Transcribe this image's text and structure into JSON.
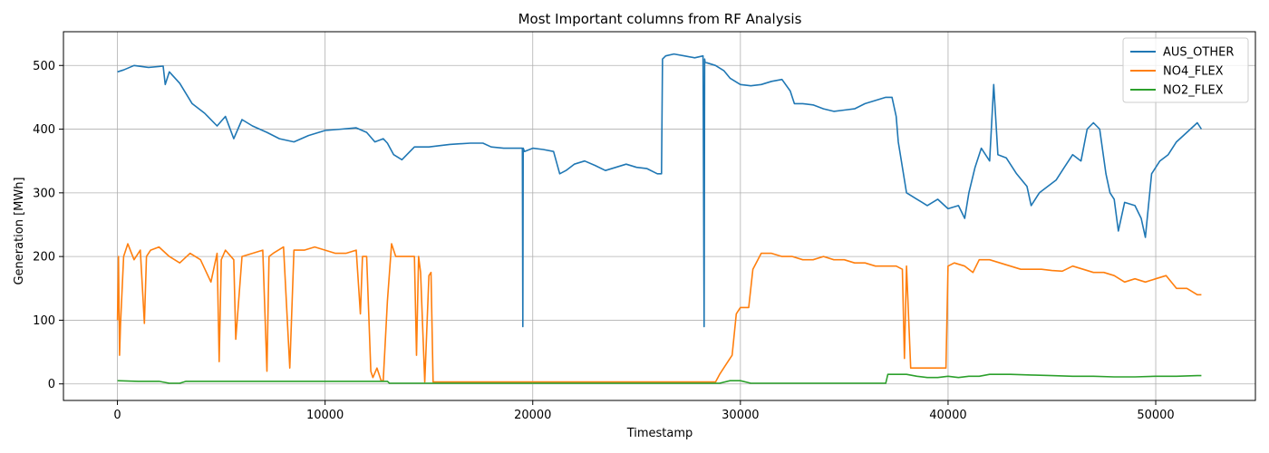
{
  "chart_data": {
    "type": "line",
    "title": "Most Important columns from RF Analysis",
    "xlabel": "Timestamp",
    "ylabel": "Generation [MWh]",
    "xlim": [
      -2600,
      54800
    ],
    "ylim": [
      -26,
      553
    ],
    "x_ticks": [
      0,
      10000,
      20000,
      30000,
      40000,
      50000
    ],
    "x_tick_labels": [
      "0",
      "10000",
      "20000",
      "30000",
      "40000",
      "50000"
    ],
    "y_ticks": [
      0,
      100,
      200,
      300,
      400,
      500
    ],
    "y_tick_labels": [
      "0",
      "100",
      "200",
      "300",
      "400",
      "500"
    ],
    "grid": true,
    "legend_position": "top-right",
    "series": [
      {
        "name": "AUS_OTHER",
        "color": "#1f77b4",
        "x": [
          0,
          300,
          800,
          1500,
          2200,
          2300,
          2500,
          3000,
          3600,
          4200,
          4800,
          5200,
          5600,
          6000,
          6500,
          7200,
          7800,
          8500,
          9200,
          10000,
          10800,
          11500,
          12000,
          12400,
          12800,
          13000,
          13300,
          13700,
          14300,
          15000,
          16000,
          17000,
          17600,
          18000,
          18600,
          19200,
          19500,
          19520,
          19540,
          19600,
          20000,
          20500,
          21000,
          21300,
          21600,
          22000,
          22500,
          23000,
          23500,
          24000,
          24500,
          25000,
          25500,
          26000,
          26200,
          26250,
          26400,
          26800,
          27300,
          27800,
          28200,
          28250,
          28280,
          28300,
          28800,
          29200,
          29500,
          30000,
          30500,
          31000,
          31500,
          32000,
          32400,
          32600,
          33000,
          33500,
          34000,
          34500,
          35000,
          35500,
          36000,
          36500,
          37000,
          37300,
          37500,
          37600,
          38000,
          38500,
          39000,
          39500,
          40000,
          40500,
          40800,
          41000,
          41300,
          41600,
          42000,
          42200,
          42400,
          42800,
          43300,
          43800,
          44000,
          44400,
          44800,
          45200,
          45600,
          46000,
          46400,
          46700,
          47000,
          47300,
          47600,
          47800,
          48000,
          48200,
          48500,
          49000,
          49300,
          49500,
          49800,
          50200,
          50600,
          51000,
          51500,
          52000,
          52200
        ],
        "values": [
          490,
          493,
          500,
          497,
          499,
          470,
          490,
          472,
          440,
          425,
          405,
          420,
          385,
          415,
          405,
          395,
          385,
          380,
          390,
          398,
          400,
          402,
          395,
          380,
          385,
          378,
          360,
          352,
          372,
          372,
          376,
          378,
          378,
          372,
          370,
          370,
          370,
          90,
          370,
          365,
          370,
          368,
          365,
          330,
          335,
          345,
          350,
          343,
          335,
          340,
          345,
          340,
          338,
          330,
          330,
          510,
          515,
          518,
          515,
          512,
          515,
          90,
          510,
          505,
          500,
          492,
          480,
          470,
          468,
          470,
          475,
          478,
          460,
          440,
          440,
          438,
          432,
          428,
          430,
          432,
          440,
          445,
          450,
          450,
          420,
          380,
          300,
          290,
          280,
          290,
          275,
          280,
          260,
          300,
          340,
          370,
          350,
          470,
          360,
          355,
          330,
          310,
          280,
          300,
          310,
          320,
          340,
          360,
          350,
          400,
          410,
          400,
          330,
          300,
          290,
          240,
          285,
          280,
          260,
          230,
          330,
          350,
          360,
          380,
          395,
          410,
          400
        ]
      },
      {
        "name": "NO4_FLEX",
        "color": "#ff7f0e",
        "x": [
          0,
          50,
          100,
          150,
          300,
          500,
          800,
          1100,
          1300,
          1400,
          1600,
          2000,
          2500,
          3000,
          3500,
          4000,
          4500,
          4800,
          4900,
          5000,
          5200,
          5600,
          5700,
          6000,
          6500,
          7000,
          7200,
          7300,
          7500,
          8000,
          8300,
          8500,
          9000,
          9500,
          10000,
          10500,
          11000,
          11500,
          11700,
          11800,
          12000,
          12200,
          12300,
          12500,
          12700,
          12800,
          13000,
          13200,
          13400,
          13700,
          14000,
          14300,
          14400,
          14500,
          14600,
          14800,
          15000,
          15100,
          15200,
          15300,
          16000,
          17000,
          20000,
          25000,
          27000,
          28500,
          28800,
          29000,
          29300,
          29600,
          29800,
          30000,
          30400,
          30600,
          31000,
          31500,
          32000,
          32500,
          33000,
          33500,
          34000,
          34500,
          35000,
          35500,
          36000,
          36500,
          37000,
          37500,
          37800,
          37900,
          38000,
          38200,
          38600,
          39000,
          39600,
          39900,
          40000,
          40300,
          40800,
          41200,
          41500,
          42000,
          42500,
          43000,
          43500,
          44000,
          44500,
          45000,
          45500,
          46000,
          46500,
          47000,
          47500,
          48000,
          48500,
          49000,
          49500,
          50000,
          50500,
          51000,
          51500,
          52000,
          52200
        ],
        "values": [
          100,
          200,
          45,
          95,
          200,
          220,
          195,
          210,
          95,
          200,
          210,
          215,
          200,
          190,
          205,
          195,
          160,
          205,
          35,
          195,
          210,
          195,
          70,
          200,
          205,
          210,
          20,
          200,
          205,
          215,
          25,
          210,
          210,
          215,
          210,
          205,
          205,
          210,
          110,
          200,
          200,
          20,
          10,
          25,
          5,
          5,
          130,
          220,
          200,
          200,
          200,
          200,
          45,
          200,
          175,
          3,
          170,
          175,
          3,
          3,
          3,
          3,
          3,
          3,
          3,
          3,
          3,
          15,
          30,
          45,
          110,
          120,
          120,
          180,
          205,
          205,
          200,
          200,
          195,
          195,
          200,
          195,
          195,
          190,
          190,
          185,
          185,
          185,
          180,
          40,
          185,
          25,
          25,
          25,
          25,
          25,
          185,
          190,
          185,
          175,
          195,
          195,
          190,
          185,
          180,
          180,
          180,
          178,
          177,
          185,
          180,
          175,
          175,
          170,
          160,
          165,
          160,
          165,
          170,
          150,
          150,
          140,
          140
        ]
      },
      {
        "name": "NO2_FLEX",
        "color": "#2ca02c",
        "x": [
          0,
          1000,
          2000,
          2500,
          3000,
          3300,
          4000,
          6000,
          8000,
          10000,
          12000,
          13000,
          13100,
          15000,
          20000,
          25000,
          29000,
          29500,
          30000,
          30500,
          31000,
          35000,
          37000,
          37100,
          38000,
          38500,
          39000,
          39500,
          40000,
          40500,
          41000,
          41500,
          42000,
          43000,
          44000,
          45000,
          46000,
          47000,
          48000,
          49000,
          50000,
          51000,
          52000,
          52200
        ],
        "values": [
          5,
          4,
          4,
          1,
          1,
          4,
          4,
          4,
          4,
          4,
          4,
          4,
          1,
          1,
          1,
          1,
          1,
          5,
          5,
          1,
          1,
          1,
          1,
          15,
          15,
          12,
          10,
          10,
          12,
          10,
          12,
          12,
          15,
          15,
          14,
          13,
          12,
          12,
          11,
          11,
          12,
          12,
          13,
          13
        ]
      }
    ]
  }
}
